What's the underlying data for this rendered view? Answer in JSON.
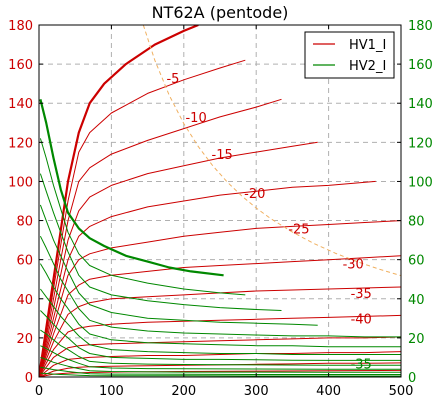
{
  "chart_data": {
    "type": "line",
    "title": "NT62A (pentode)",
    "xlabel": "",
    "ylabel": "",
    "xlim": [
      0,
      500
    ],
    "ylim": [
      0,
      180
    ],
    "xticks": [
      0,
      100,
      200,
      300,
      400,
      500
    ],
    "yticks": [
      0,
      20,
      40,
      60,
      80,
      100,
      120,
      140,
      160,
      180
    ],
    "grid": true,
    "left_axis_color": "#cc0000",
    "right_axis_color": "#008800",
    "legend": {
      "placement": "top-right",
      "entries": [
        {
          "name": "HV1_I",
          "color": "#cc0000"
        },
        {
          "name": "HV2_I",
          "color": "#008800"
        }
      ]
    },
    "series": [
      {
        "group": "HV1_I",
        "grid_voltage": "0",
        "color": "#cc0000",
        "bold": true,
        "x": [
          0,
          20,
          40,
          55,
          70,
          90,
          120,
          160,
          200,
          220
        ],
        "y": [
          0,
          50,
          100,
          125,
          140,
          150,
          160,
          170,
          177,
          180
        ]
      },
      {
        "group": "HV1_I",
        "grid_voltage": "-5",
        "color": "#cc0000",
        "bold": false,
        "x": [
          0,
          20,
          40,
          55,
          70,
          100,
          150,
          200,
          250,
          285
        ],
        "y": [
          0,
          45,
          90,
          115,
          125,
          135,
          145,
          152,
          158,
          162
        ]
      },
      {
        "group": "HV1_I",
        "grid_voltage": "-10",
        "color": "#cc0000",
        "bold": false,
        "x": [
          0,
          20,
          40,
          55,
          70,
          100,
          150,
          200,
          250,
          300,
          335
        ],
        "y": [
          0,
          40,
          80,
          100,
          107,
          114,
          121,
          127,
          133,
          138,
          142
        ]
      },
      {
        "group": "HV1_I",
        "grid_voltage": "-15",
        "color": "#cc0000",
        "bold": false,
        "x": [
          0,
          20,
          40,
          55,
          70,
          100,
          150,
          200,
          250,
          300,
          350,
          385
        ],
        "y": [
          0,
          35,
          70,
          85,
          92,
          98,
          104,
          108,
          112,
          115,
          118,
          120
        ]
      },
      {
        "group": "HV1_I",
        "grid_voltage": "-20",
        "color": "#cc0000",
        "bold": false,
        "x": [
          0,
          20,
          40,
          55,
          70,
          100,
          150,
          200,
          250,
          300,
          350,
          400,
          465
        ],
        "y": [
          0,
          30,
          60,
          72,
          77,
          82,
          87,
          90,
          93,
          95,
          97,
          98,
          100
        ]
      },
      {
        "group": "HV1_I",
        "grid_voltage": "-25",
        "color": "#cc0000",
        "bold": false,
        "x": [
          0,
          20,
          40,
          55,
          70,
          100,
          150,
          200,
          250,
          300,
          350,
          400,
          450,
          500
        ],
        "y": [
          0,
          26,
          52,
          60,
          63,
          66,
          69,
          72,
          74,
          76,
          77,
          78,
          79,
          80
        ]
      },
      {
        "group": "HV1_I",
        "grid_voltage": "-30",
        "color": "#cc0000",
        "bold": false,
        "x": [
          0,
          20,
          40,
          55,
          70,
          100,
          150,
          200,
          250,
          300,
          350,
          400,
          450,
          500
        ],
        "y": [
          0,
          22,
          42,
          47,
          50,
          52,
          54,
          56,
          57,
          58,
          59,
          60,
          61,
          62
        ]
      },
      {
        "group": "HV1_I",
        "grid_voltage": "-35",
        "color": "#cc0000",
        "bold": false,
        "x": [
          0,
          20,
          40,
          55,
          70,
          100,
          150,
          200,
          250,
          300,
          350,
          400,
          450,
          500
        ],
        "y": [
          0,
          18,
          32,
          36,
          38,
          40,
          41,
          42,
          43,
          44,
          44.5,
          45,
          45.5,
          46
        ]
      },
      {
        "group": "HV1_I",
        "grid_voltage": "-40",
        "color": "#cc0000",
        "bold": false,
        "x": [
          0,
          20,
          40,
          55,
          70,
          100,
          150,
          200,
          250,
          300,
          350,
          400,
          450,
          500
        ],
        "y": [
          0,
          14,
          23,
          25,
          26,
          27,
          28,
          28.5,
          29,
          29.5,
          30,
          30.5,
          31,
          31.5
        ]
      },
      {
        "group": "HV1_I",
        "grid_voltage": "-45",
        "color": "#cc0000",
        "bold": false,
        "x": [
          0,
          20,
          40,
          55,
          70,
          100,
          150,
          200,
          250,
          300,
          350,
          400,
          450,
          500
        ],
        "y": [
          0,
          10,
          15,
          16,
          16.5,
          17,
          17.5,
          18,
          18.5,
          19,
          19.5,
          20,
          20,
          20.5
        ]
      },
      {
        "group": "HV1_I",
        "grid_voltage": "-50",
        "color": "#cc0000",
        "bold": false,
        "x": [
          0,
          20,
          40,
          55,
          70,
          100,
          150,
          200,
          250,
          300,
          350,
          400,
          450,
          500
        ],
        "y": [
          0,
          6,
          9,
          9.5,
          10,
          10.5,
          11,
          11,
          11.5,
          12,
          12,
          12.5,
          12.5,
          13
        ]
      },
      {
        "group": "HV1_I",
        "grid_voltage": "-55",
        "color": "#cc0000",
        "bold": false,
        "x": [
          0,
          20,
          40,
          55,
          70,
          100,
          150,
          200,
          250,
          300,
          350,
          400,
          450,
          500
        ],
        "y": [
          0,
          3,
          4.5,
          5,
          5.2,
          5.5,
          5.8,
          6,
          6.2,
          6.5,
          6.7,
          7,
          7,
          7.2
        ]
      },
      {
        "group": "HV1_I",
        "grid_voltage": "-60",
        "color": "#cc0000",
        "bold": false,
        "x": [
          0,
          20,
          40,
          70,
          100,
          150,
          200,
          300,
          400,
          500
        ],
        "y": [
          0,
          1.5,
          2,
          2.3,
          2.5,
          2.7,
          2.8,
          3,
          3.2,
          3.4
        ]
      },
      {
        "group": "HV2_I",
        "grid_voltage": "0",
        "color": "#008800",
        "bold": true,
        "x": [
          2,
          10,
          20,
          30,
          40,
          55,
          70,
          90,
          120,
          150,
          180,
          210,
          255
        ],
        "y": [
          142,
          130,
          112,
          96,
          84,
          76,
          71,
          67,
          62,
          59,
          56,
          54,
          52
        ]
      },
      {
        "group": "HV2_I",
        "grid_voltage": "-5",
        "color": "#008800",
        "bold": false,
        "x": [
          2,
          10,
          20,
          30,
          40,
          55,
          70,
          100,
          150,
          200,
          250,
          285
        ],
        "y": [
          122,
          112,
          98,
          86,
          74,
          63,
          57,
          52,
          48,
          45,
          43,
          42
        ]
      },
      {
        "group": "HV2_I",
        "grid_voltage": "-10",
        "color": "#008800",
        "bold": false,
        "x": [
          2,
          10,
          20,
          30,
          40,
          55,
          70,
          100,
          150,
          200,
          250,
          300,
          335
        ],
        "y": [
          104,
          95,
          84,
          74,
          64,
          52,
          46,
          42,
          39,
          37,
          35.5,
          34.5,
          34
        ]
      },
      {
        "group": "HV2_I",
        "grid_voltage": "-15",
        "color": "#008800",
        "bold": false,
        "x": [
          2,
          10,
          20,
          30,
          40,
          55,
          70,
          100,
          150,
          200,
          250,
          300,
          350,
          385
        ],
        "y": [
          88,
          80,
          70,
          62,
          54,
          43,
          37,
          33,
          30,
          29,
          28,
          27.5,
          27,
          26.5
        ]
      },
      {
        "group": "HV2_I",
        "grid_voltage": "-20",
        "color": "#008800",
        "bold": false,
        "x": [
          2,
          10,
          20,
          30,
          40,
          55,
          70,
          100,
          150,
          200,
          250,
          300,
          350,
          400,
          450,
          500
        ],
        "y": [
          72,
          66,
          58,
          50,
          44,
          35,
          29,
          25.5,
          23.5,
          22.5,
          22,
          21.5,
          21,
          21,
          20.5,
          20.5
        ]
      },
      {
        "group": "HV2_I",
        "grid_voltage": "-25",
        "color": "#008800",
        "bold": false,
        "x": [
          2,
          10,
          20,
          30,
          40,
          55,
          70,
          100,
          150,
          200,
          250,
          300,
          350,
          400,
          450,
          500
        ],
        "y": [
          58,
          53,
          46,
          40,
          35,
          27,
          22,
          19,
          17.5,
          17,
          16.5,
          16,
          16,
          15.5,
          15.5,
          15.5
        ]
      },
      {
        "group": "HV2_I",
        "grid_voltage": "-30",
        "color": "#008800",
        "bold": false,
        "x": [
          2,
          10,
          20,
          30,
          40,
          55,
          70,
          100,
          150,
          200,
          250,
          300,
          350,
          400,
          450,
          500
        ],
        "y": [
          45,
          41,
          36,
          31,
          27,
          21,
          16.5,
          14,
          13,
          12.5,
          12,
          12,
          11.5,
          11.5,
          11.5,
          11.5
        ]
      },
      {
        "group": "HV2_I",
        "grid_voltage": "-35",
        "color": "#008800",
        "bold": false,
        "x": [
          2,
          10,
          20,
          30,
          40,
          55,
          70,
          100,
          150,
          200,
          250,
          300,
          350,
          400,
          450,
          500
        ],
        "y": [
          34,
          31,
          27,
          23,
          20,
          15,
          12,
          10,
          9.5,
          9,
          9,
          8.8,
          8.6,
          8.5,
          8.5,
          8.5
        ]
      },
      {
        "group": "HV2_I",
        "grid_voltage": "-40",
        "color": "#008800",
        "bold": false,
        "x": [
          2,
          10,
          20,
          30,
          40,
          55,
          70,
          100,
          150,
          200,
          300,
          400,
          500
        ],
        "y": [
          24,
          22,
          19,
          16,
          14,
          10.5,
          8,
          7,
          6.6,
          6.4,
          6.2,
          6,
          6
        ]
      },
      {
        "group": "HV2_I",
        "grid_voltage": "-45",
        "color": "#008800",
        "bold": false,
        "x": [
          2,
          10,
          20,
          30,
          40,
          55,
          70,
          100,
          150,
          200,
          300,
          400,
          500
        ],
        "y": [
          16,
          14.5,
          12.5,
          10.5,
          9,
          7,
          5.2,
          4.6,
          4.3,
          4.2,
          4.1,
          4,
          4
        ]
      },
      {
        "group": "HV2_I",
        "grid_voltage": "-50",
        "color": "#008800",
        "bold": false,
        "x": [
          2,
          10,
          20,
          30,
          40,
          55,
          70,
          100,
          150,
          200,
          300,
          400,
          500
        ],
        "y": [
          10,
          9,
          7.5,
          6.5,
          5.5,
          4.3,
          3.2,
          2.8,
          2.6,
          2.5,
          2.5,
          2.4,
          2.4
        ]
      },
      {
        "group": "HV2_I",
        "grid_voltage": "-55",
        "color": "#008800",
        "bold": false,
        "x": [
          2,
          10,
          20,
          30,
          40,
          55,
          70,
          100,
          200,
          300,
          400,
          500
        ],
        "y": [
          5,
          4.5,
          3.8,
          3.3,
          2.8,
          2.2,
          1.7,
          1.5,
          1.4,
          1.3,
          1.3,
          1.3
        ]
      },
      {
        "group": "HV2_I",
        "grid_voltage": "-60",
        "color": "#008800",
        "bold": false,
        "x": [
          2,
          10,
          20,
          30,
          40,
          55,
          70,
          100,
          200,
          300,
          400,
          500
        ],
        "y": [
          2,
          1.8,
          1.5,
          1.3,
          1.1,
          0.9,
          0.7,
          0.6,
          0.6,
          0.5,
          0.5,
          0.5
        ]
      },
      {
        "group": "dissipation-limit",
        "color": "#f0b060",
        "dashed": true,
        "x": [
          144,
          160,
          180,
          200,
          220,
          240,
          260,
          280,
          300,
          320,
          350,
          380,
          410,
          440,
          470,
          500
        ],
        "y": [
          180,
          162,
          144,
          129.6,
          117.8,
          108,
          99.7,
          92.6,
          86.4,
          81,
          74.1,
          68.2,
          63.2,
          58.9,
          55.1,
          51.8
        ]
      }
    ],
    "annotations": [
      {
        "text": "-5",
        "x": 185,
        "y": 153,
        "color": "#cc0000"
      },
      {
        "text": "-10",
        "x": 217,
        "y": 133,
        "color": "#cc0000"
      },
      {
        "text": "-15",
        "x": 253,
        "y": 114,
        "color": "#cc0000"
      },
      {
        "text": "-20",
        "x": 298,
        "y": 94,
        "color": "#cc0000"
      },
      {
        "text": "-25",
        "x": 359,
        "y": 76,
        "color": "#cc0000"
      },
      {
        "text": "-30",
        "x": 434,
        "y": 58,
        "color": "#cc0000"
      },
      {
        "text": "-35",
        "x": 445,
        "y": 43,
        "color": "#cc0000"
      },
      {
        "text": "-40",
        "x": 445,
        "y": 30,
        "color": "#cc0000"
      },
      {
        "text": "-35",
        "x": 445,
        "y": 7,
        "color": "#008800"
      }
    ]
  }
}
